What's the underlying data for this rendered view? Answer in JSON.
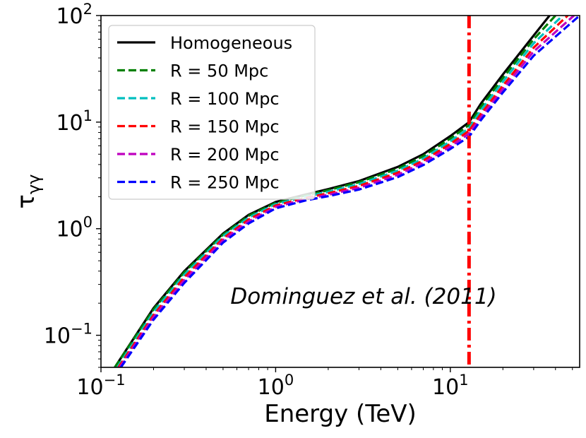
{
  "chart_data": {
    "type": "line",
    "title": "",
    "xlabel": "Energy (TeV)",
    "ylabel_main": "τ",
    "ylabel_sub": "γγ",
    "xscale": "log",
    "yscale": "log",
    "xlim": [
      0.1,
      55
    ],
    "ylim": [
      0.05,
      100
    ],
    "grid": false,
    "legend_location": "upper left",
    "annotation": "Dominguez et al. (2011)",
    "x_ticks": [
      {
        "base": "10",
        "exp": "−1",
        "value": 0.1
      },
      {
        "base": "10",
        "exp": "0",
        "value": 1
      },
      {
        "base": "10",
        "exp": "1",
        "value": 10
      }
    ],
    "y_ticks": [
      {
        "base": "10",
        "exp": "−1",
        "value": 0.1
      },
      {
        "base": "10",
        "exp": "0",
        "value": 1
      },
      {
        "base": "10",
        "exp": "1",
        "value": 10
      },
      {
        "base": "10",
        "exp": "2",
        "value": 100
      }
    ],
    "vertical_line": {
      "x": 12.8,
      "color": "#ff0000",
      "style": "dashdot"
    },
    "series": [
      {
        "name": "Homogeneous",
        "color": "#000000",
        "style": "solid",
        "x": [
          0.12,
          0.2,
          0.3,
          0.5,
          0.7,
          1.0,
          1.5,
          2.0,
          3.0,
          5.0,
          7.0,
          10.0,
          12.8,
          15.0,
          20.0,
          30.0,
          37.0
        ],
        "y": [
          0.05,
          0.18,
          0.4,
          0.9,
          1.35,
          1.78,
          2.1,
          2.35,
          2.8,
          3.8,
          5.0,
          7.4,
          10.0,
          15.0,
          28.0,
          65.0,
          100.0
        ]
      },
      {
        "name": "R = 50 Mpc",
        "color": "#008000",
        "style": "dashed",
        "x": [
          0.12,
          0.2,
          0.3,
          0.5,
          0.7,
          1.0,
          1.5,
          2.0,
          3.0,
          5.0,
          7.0,
          10.0,
          12.8,
          15.0,
          20.0,
          30.0,
          40.0
        ],
        "y": [
          0.05,
          0.175,
          0.39,
          0.88,
          1.32,
          1.75,
          2.06,
          2.3,
          2.73,
          3.65,
          4.8,
          7.0,
          9.4,
          14.0,
          26.0,
          60.0,
          100.0
        ]
      },
      {
        "name": "R = 100 Mpc",
        "color": "#00bfbf",
        "style": "dashed",
        "x": [
          0.124,
          0.2,
          0.3,
          0.5,
          0.7,
          1.0,
          1.5,
          2.0,
          3.0,
          5.0,
          7.0,
          10.0,
          12.8,
          15.0,
          20.0,
          30.0,
          44.0
        ],
        "y": [
          0.05,
          0.165,
          0.37,
          0.85,
          1.27,
          1.7,
          2.0,
          2.22,
          2.62,
          3.5,
          4.55,
          6.6,
          8.8,
          13.0,
          24.0,
          55.0,
          100.0
        ]
      },
      {
        "name": "R = 150 Mpc",
        "color": "#ff0000",
        "style": "dashed",
        "x": [
          0.126,
          0.2,
          0.3,
          0.5,
          0.7,
          1.0,
          1.5,
          2.0,
          3.0,
          5.0,
          7.0,
          10.0,
          12.8,
          15.0,
          20.0,
          30.0,
          47.0
        ],
        "y": [
          0.05,
          0.155,
          0.35,
          0.81,
          1.22,
          1.65,
          1.95,
          2.15,
          2.52,
          3.35,
          4.35,
          6.25,
          8.3,
          12.0,
          22.0,
          50.0,
          100.0
        ]
      },
      {
        "name": "R = 200 Mpc",
        "color": "#bf00bf",
        "style": "dashed",
        "x": [
          0.128,
          0.2,
          0.3,
          0.5,
          0.7,
          1.0,
          1.5,
          2.0,
          3.0,
          5.0,
          7.0,
          10.0,
          12.8,
          15.0,
          20.0,
          30.0,
          51.0
        ],
        "y": [
          0.05,
          0.148,
          0.33,
          0.78,
          1.17,
          1.6,
          1.9,
          2.08,
          2.42,
          3.2,
          4.15,
          5.9,
          7.8,
          11.2,
          20.5,
          46.0,
          100.0
        ]
      },
      {
        "name": "R = 250 Mpc",
        "color": "#0000ff",
        "style": "dashed",
        "x": [
          0.13,
          0.2,
          0.3,
          0.5,
          0.7,
          1.0,
          1.5,
          2.0,
          3.0,
          5.0,
          7.0,
          10.0,
          12.8,
          15.0,
          20.0,
          30.0,
          55.0
        ],
        "y": [
          0.05,
          0.14,
          0.31,
          0.74,
          1.12,
          1.55,
          1.85,
          2.02,
          2.33,
          3.05,
          3.95,
          5.6,
          7.3,
          10.5,
          19.0,
          42.0,
          100.0
        ]
      }
    ]
  }
}
